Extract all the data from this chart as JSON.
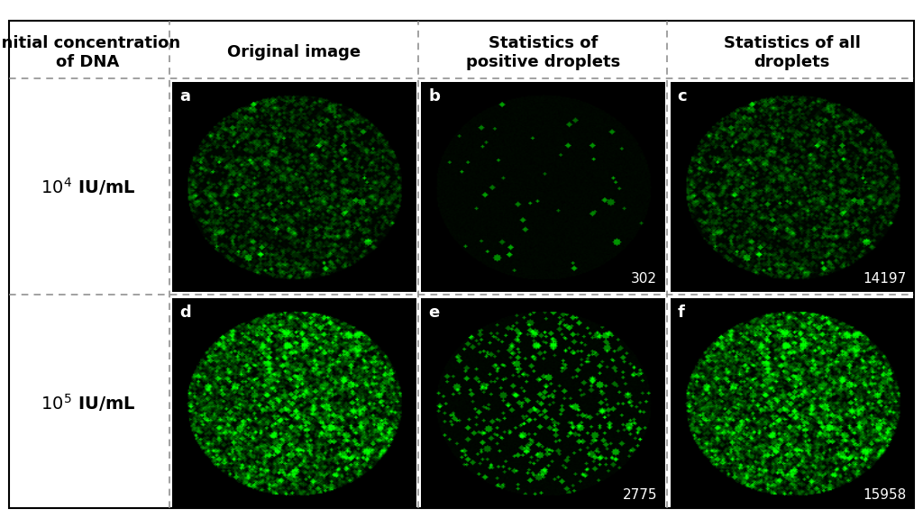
{
  "background_color": "#ffffff",
  "col_headers": [
    "Original image",
    "Statistics of\npositive droplets",
    "Statistics of all\ndroplets"
  ],
  "row_label_header": "Initial concentration\nof DNA",
  "panel_labels": [
    [
      "a",
      "b",
      "c"
    ],
    [
      "d",
      "e",
      "f"
    ]
  ],
  "panel_numbers": {
    "b": "302",
    "c": "14197",
    "e": "2775",
    "f": "15958"
  },
  "dashed_line_color": "#888888",
  "label_color": "#ffffff",
  "number_color": "#ffffff",
  "header_color": "#000000",
  "row_label_color": "#000000",
  "panel_label_fontsize": 13,
  "number_fontsize": 11,
  "header_fontsize": 13,
  "row_label_fontsize": 14,
  "row_exponents": [
    "4",
    "5"
  ],
  "border_color": "#000000"
}
